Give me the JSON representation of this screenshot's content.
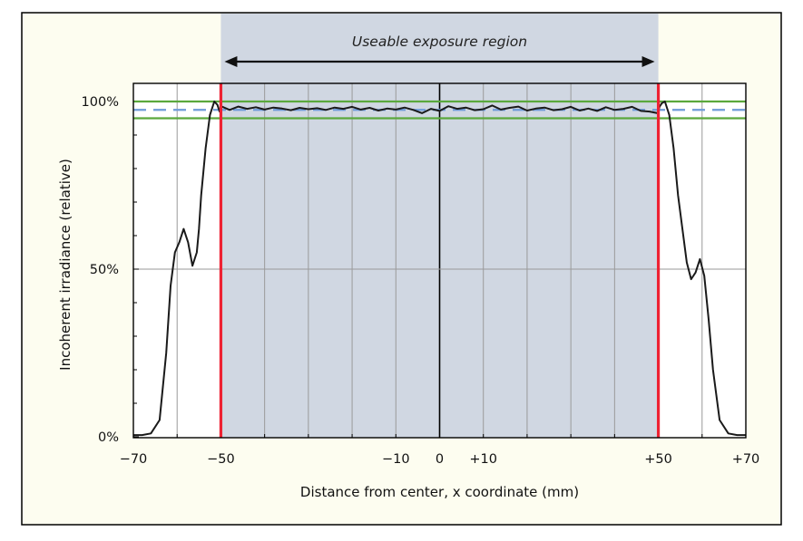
{
  "chart_data": {
    "type": "line",
    "title": "",
    "xlabel": "Distance from center, x coordinate (mm)",
    "ylabel": "Incoherent irradiance (relative)",
    "xlim": [
      -70,
      70
    ],
    "ylim": [
      0,
      100
    ],
    "x_tick_labels": [
      "−70",
      "−50",
      "−10",
      "0",
      "+10",
      "+50",
      "+70"
    ],
    "x_tick_values": [
      -70,
      -50,
      -10,
      0,
      10,
      50,
      70
    ],
    "y_tick_labels": [
      "0%",
      "50%",
      "100%"
    ],
    "y_tick_values": [
      0,
      50,
      100
    ],
    "grid": true,
    "region": {
      "label": "Useable exposure region",
      "x_start": -50,
      "x_end": 50
    },
    "reference_lines": {
      "center": 97.5,
      "upper": 100,
      "lower": 95
    },
    "series": [
      {
        "x": [
          -70,
          -68,
          -66,
          -64,
          -62.5,
          -61.5,
          -60.5,
          -59.5,
          -58.5,
          -57.5,
          -56.5,
          -55.5,
          -55,
          -54.5,
          -53.5,
          -52.5,
          -51.5,
          -50.8,
          -50.3,
          -49.8,
          -48,
          -46,
          -44,
          -42,
          -40,
          -38,
          -36,
          -34,
          -32,
          -30,
          -28,
          -26,
          -24,
          -22,
          -20,
          -18,
          -16,
          -14,
          -12,
          -10,
          -8,
          -6,
          -4,
          -2,
          0,
          2,
          4,
          6,
          8,
          10,
          12,
          14,
          16,
          18,
          20,
          22,
          24,
          26,
          28,
          30,
          32,
          34,
          36,
          38,
          40,
          42,
          44,
          46,
          48,
          49.8,
          50.3,
          50.8,
          51.5,
          52.5,
          53.5,
          54.5,
          55.5,
          56.5,
          57.5,
          58.5,
          59.5,
          60.5,
          61.5,
          62.5,
          64,
          66,
          68,
          70
        ],
        "y": [
          0.5,
          0.5,
          1,
          5,
          25,
          45,
          55,
          58,
          62,
          58,
          51,
          55,
          62,
          72,
          86,
          96,
          100,
          99,
          97,
          98.5,
          97.5,
          98.5,
          97.8,
          98.3,
          97.6,
          98.2,
          97.9,
          97.4,
          98.1,
          97.7,
          98,
          97.5,
          98.2,
          97.8,
          98.4,
          97.6,
          98.1,
          97.3,
          97.9,
          97.6,
          98.2,
          97.5,
          96.5,
          97.8,
          97.2,
          98.6,
          97.8,
          98.2,
          97.4,
          97.7,
          98.8,
          97.6,
          98.1,
          98.5,
          97.3,
          97.9,
          98.2,
          97.4,
          97.7,
          98.4,
          97.3,
          97.9,
          97.2,
          98.3,
          97.5,
          97.8,
          98.4,
          97.2,
          97,
          96.5,
          98.5,
          99.5,
          100,
          96,
          86,
          72,
          62,
          52,
          47,
          49,
          53,
          48,
          35,
          20,
          5,
          1,
          0.5,
          0.5
        ]
      }
    ],
    "colors": {
      "plot_bg": "#ffffff",
      "region_fill": "#d0d7e2",
      "outer_bg": "#fdfdf0",
      "curve": "#1a1a1a",
      "boundary": "#ee2233",
      "band": "#5aa83c",
      "center_dash": "#6f9bd8",
      "grid": "#9a9a9a",
      "frame": "#000000"
    }
  }
}
